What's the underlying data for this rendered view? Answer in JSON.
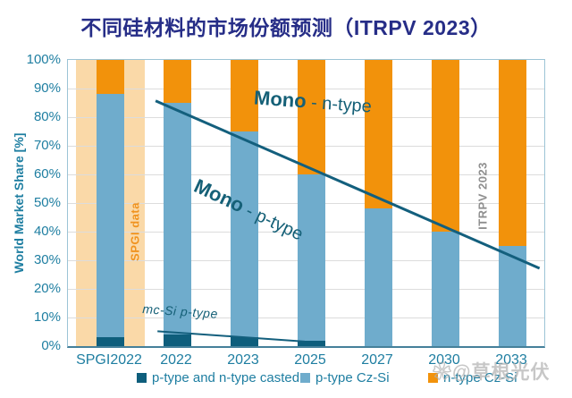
{
  "title": "不同硅材料的市场份额预测（ITRPV 2023）",
  "watermark": "❀@草根光伏",
  "chart_data": {
    "type": "bar",
    "stacked": true,
    "title": "不同硅材料的市场份额预测（ITRPV 2023）",
    "ylabel": "World Market Share [%]",
    "ylim": [
      0,
      100
    ],
    "grid": true,
    "legend_position": "bottom",
    "categories": [
      "SPGI2022",
      "2022",
      "2023",
      "2025",
      "2027",
      "2030",
      "2033"
    ],
    "series": [
      {
        "name": "p-type and n-type casted",
        "color": "#0E5E7C",
        "values": [
          3,
          4,
          3,
          2,
          0,
          0,
          0
        ]
      },
      {
        "name": "p-type Cz-Si",
        "color": "#6FACCC",
        "values": [
          85,
          81,
          72,
          58,
          48,
          40,
          35
        ]
      },
      {
        "name": "n-type Cz-Si",
        "color": "#F2920B",
        "values": [
          12,
          15,
          25,
          40,
          52,
          60,
          65
        ]
      }
    ],
    "yticks": [
      "0%",
      "10%",
      "20%",
      "30%",
      "40%",
      "50%",
      "60%",
      "70%",
      "80%",
      "90%",
      "100%"
    ],
    "highlight_band": {
      "category": "SPGI2022",
      "color": "#FAD9A8",
      "label": "SPGI data",
      "label_color": "#F0931F"
    },
    "annotations": [
      {
        "name": "mono-n-type",
        "bold": "Mono",
        "rest": " - n-type"
      },
      {
        "name": "mono-p-type",
        "bold": "Mono",
        "rest": " - p-type"
      },
      {
        "name": "mc-si",
        "text": "mc-Si  p-type"
      },
      {
        "name": "itrpv-source",
        "text": "ITRPV 2023"
      }
    ],
    "trend_lines": [
      {
        "name": "mono-split",
        "x1": 0.184,
        "y1": 85.7,
        "x2": 0.99,
        "y2": 27.2,
        "width": 3,
        "color": "#135F7D"
      },
      {
        "name": "mc-si-trend",
        "x1": 0.188,
        "y1": 5.2,
        "x2": 0.497,
        "y2": 1.6,
        "width": 2,
        "color": "#135F7D"
      }
    ],
    "colors": {
      "title_text": "#262D87",
      "axis_text": "#1E7EA1",
      "annotation_text": "#156077",
      "source_text": "#8F8F8F"
    }
  }
}
